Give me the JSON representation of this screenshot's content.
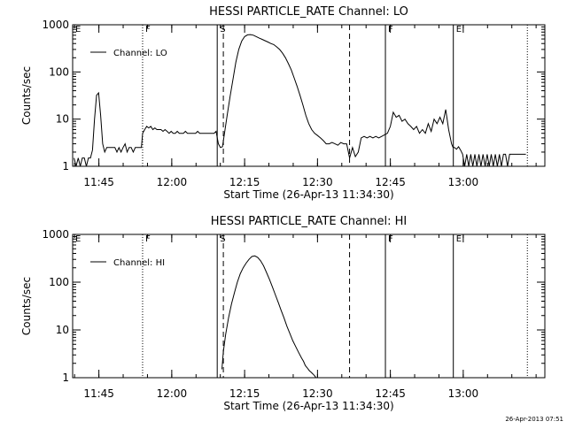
{
  "chart_data": [
    {
      "type": "line",
      "title": "HESSI PARTICLE_RATE Channel: LO",
      "xlabel": "Start Time (26-Apr-13 11:34:30)",
      "ylabel": "Counts/sec",
      "yscale": "log",
      "ylim": [
        1,
        1000
      ],
      "xlim": [
        11.66,
        13.28
      ],
      "x_ticks": [
        {
          "t": 11.75,
          "label": "11:45"
        },
        {
          "t": 12.0,
          "label": "12:00"
        },
        {
          "t": 12.25,
          "label": "12:15"
        },
        {
          "t": 12.5,
          "label": "12:30"
        },
        {
          "t": 12.75,
          "label": "12:45"
        },
        {
          "t": 13.0,
          "label": "13:00"
        }
      ],
      "y_ticks": [
        {
          "v": 1,
          "label": "1"
        },
        {
          "v": 10,
          "label": "10"
        },
        {
          "v": 100,
          "label": "100"
        },
        {
          "v": 1000,
          "label": "1000"
        }
      ],
      "legend": {
        "label": "Channel: LO",
        "position": "top-left"
      },
      "markers": [
        {
          "t": 11.66,
          "label": "E",
          "style": "dotted"
        },
        {
          "t": 11.9,
          "label": "F",
          "style": "dotted"
        },
        {
          "t": 12.156,
          "label": "S",
          "style": "solid"
        },
        {
          "t": 12.177,
          "label": "",
          "style": "dashed"
        },
        {
          "t": 12.61,
          "label": "",
          "style": "dashed"
        },
        {
          "t": 12.733,
          "label": "F",
          "style": "solid"
        },
        {
          "t": 12.966,
          "label": "E",
          "style": "solid"
        },
        {
          "t": 13.22,
          "label": "",
          "style": "dotted"
        }
      ],
      "series": [
        {
          "name": "Channel: LO",
          "points": [
            [
              11.665,
              1.5
            ],
            [
              11.672,
              1
            ],
            [
              11.679,
              1.5
            ],
            [
              11.686,
              1
            ],
            [
              11.693,
              1.5
            ],
            [
              11.7,
              1.5
            ],
            [
              11.707,
              1
            ],
            [
              11.714,
              1.5
            ],
            [
              11.721,
              1.5
            ],
            [
              11.728,
              2.2
            ],
            [
              11.735,
              10
            ],
            [
              11.742,
              32
            ],
            [
              11.749,
              36
            ],
            [
              11.756,
              12
            ],
            [
              11.763,
              3
            ],
            [
              11.77,
              2
            ],
            [
              11.777,
              2.5
            ],
            [
              11.784,
              2.5
            ],
            [
              11.791,
              2.5
            ],
            [
              11.798,
              2.5
            ],
            [
              11.805,
              2.5
            ],
            [
              11.812,
              2
            ],
            [
              11.819,
              2.5
            ],
            [
              11.826,
              2
            ],
            [
              11.833,
              2.5
            ],
            [
              11.84,
              3
            ],
            [
              11.847,
              2
            ],
            [
              11.854,
              2.5
            ],
            [
              11.861,
              2.5
            ],
            [
              11.868,
              2
            ],
            [
              11.875,
              2.5
            ],
            [
              11.882,
              2.5
            ],
            [
              11.889,
              2.5
            ],
            [
              11.896,
              2.5
            ],
            [
              11.9,
              5
            ],
            [
              11.907,
              6
            ],
            [
              11.914,
              7
            ],
            [
              11.921,
              6.5
            ],
            [
              11.928,
              7
            ],
            [
              11.935,
              6
            ],
            [
              11.942,
              6.5
            ],
            [
              11.949,
              6
            ],
            [
              11.956,
              6
            ],
            [
              11.963,
              6
            ],
            [
              11.97,
              5.5
            ],
            [
              11.977,
              6
            ],
            [
              11.984,
              5.5
            ],
            [
              11.991,
              5
            ],
            [
              11.998,
              5.5
            ],
            [
              12.005,
              5
            ],
            [
              12.012,
              5
            ],
            [
              12.019,
              5.5
            ],
            [
              12.026,
              5
            ],
            [
              12.033,
              5
            ],
            [
              12.04,
              5
            ],
            [
              12.047,
              5.5
            ],
            [
              12.054,
              5
            ],
            [
              12.061,
              5
            ],
            [
              12.068,
              5
            ],
            [
              12.075,
              5
            ],
            [
              12.082,
              5
            ],
            [
              12.089,
              5.5
            ],
            [
              12.096,
              5
            ],
            [
              12.103,
              5
            ],
            [
              12.11,
              5
            ],
            [
              12.117,
              5
            ],
            [
              12.124,
              5
            ],
            [
              12.131,
              5
            ],
            [
              12.138,
              5
            ],
            [
              12.145,
              5
            ],
            [
              12.152,
              5.5
            ],
            [
              12.16,
              3
            ],
            [
              12.167,
              2.5
            ],
            [
              12.174,
              2.6
            ],
            [
              12.181,
              5
            ],
            [
              12.19,
              12
            ],
            [
              12.2,
              30
            ],
            [
              12.21,
              70
            ],
            [
              12.22,
              160
            ],
            [
              12.23,
              300
            ],
            [
              12.24,
              450
            ],
            [
              12.25,
              560
            ],
            [
              12.26,
              610
            ],
            [
              12.27,
              620
            ],
            [
              12.28,
              600
            ],
            [
              12.29,
              560
            ],
            [
              12.3,
              520
            ],
            [
              12.31,
              490
            ],
            [
              12.32,
              460
            ],
            [
              12.33,
              430
            ],
            [
              12.34,
              400
            ],
            [
              12.35,
              380
            ],
            [
              12.36,
              340
            ],
            [
              12.37,
              300
            ],
            [
              12.38,
              250
            ],
            [
              12.39,
              200
            ],
            [
              12.4,
              150
            ],
            [
              12.41,
              110
            ],
            [
              12.42,
              75
            ],
            [
              12.43,
              50
            ],
            [
              12.44,
              32
            ],
            [
              12.45,
              20
            ],
            [
              12.46,
              12
            ],
            [
              12.47,
              8
            ],
            [
              12.48,
              6
            ],
            [
              12.49,
              5
            ],
            [
              12.5,
              4.5
            ],
            [
              12.51,
              4
            ],
            [
              12.52,
              3.5
            ],
            [
              12.53,
              3
            ],
            [
              12.54,
              3
            ],
            [
              12.55,
              3.2
            ],
            [
              12.56,
              3
            ],
            [
              12.57,
              2.8
            ],
            [
              12.58,
              3.2
            ],
            [
              12.59,
              3
            ],
            [
              12.6,
              3
            ],
            [
              12.61,
              1.5
            ],
            [
              12.62,
              2.5
            ],
            [
              12.63,
              1.6
            ],
            [
              12.64,
              2
            ],
            [
              12.65,
              4
            ],
            [
              12.66,
              4.3
            ],
            [
              12.67,
              4
            ],
            [
              12.68,
              4.3
            ],
            [
              12.69,
              4
            ],
            [
              12.7,
              4.3
            ],
            [
              12.71,
              4
            ],
            [
              12.72,
              4.3
            ],
            [
              12.74,
              5
            ],
            [
              12.75,
              7
            ],
            [
              12.76,
              14
            ],
            [
              12.77,
              11
            ],
            [
              12.78,
              12
            ],
            [
              12.79,
              9
            ],
            [
              12.8,
              10
            ],
            [
              12.81,
              8
            ],
            [
              12.82,
              7
            ],
            [
              12.83,
              6
            ],
            [
              12.84,
              7
            ],
            [
              12.85,
              5
            ],
            [
              12.86,
              6
            ],
            [
              12.87,
              5
            ],
            [
              12.88,
              8
            ],
            [
              12.89,
              5.5
            ],
            [
              12.9,
              10
            ],
            [
              12.91,
              8
            ],
            [
              12.92,
              11
            ],
            [
              12.93,
              8
            ],
            [
              12.94,
              16
            ],
            [
              12.95,
              6
            ],
            [
              12.96,
              3
            ],
            [
              12.965,
              2.5
            ],
            [
              12.97,
              2.5
            ],
            [
              12.977,
              2.3
            ],
            [
              12.984,
              2.6
            ],
            [
              12.991,
              2.2
            ],
            [
              12.998,
              1.8
            ],
            [
              13.005,
              1
            ],
            [
              13.012,
              1.8
            ],
            [
              13.019,
              1
            ],
            [
              13.026,
              1.8
            ],
            [
              13.033,
              1
            ],
            [
              13.04,
              1.8
            ],
            [
              13.047,
              1
            ],
            [
              13.054,
              1.8
            ],
            [
              13.061,
              1
            ],
            [
              13.068,
              1.8
            ],
            [
              13.075,
              1
            ],
            [
              13.082,
              1.8
            ],
            [
              13.089,
              1
            ],
            [
              13.096,
              1.8
            ],
            [
              13.103,
              1
            ],
            [
              13.11,
              1.8
            ],
            [
              13.117,
              1
            ],
            [
              13.124,
              1.8
            ],
            [
              13.131,
              1
            ],
            [
              13.138,
              1.8
            ],
            [
              13.145,
              1.8
            ],
            [
              13.152,
              1
            ],
            [
              13.159,
              1.8
            ],
            [
              13.166,
              1.8
            ],
            [
              13.173,
              1.8
            ],
            [
              13.18,
              1.8
            ],
            [
              13.187,
              1.8
            ],
            [
              13.194,
              1.8
            ],
            [
              13.201,
              1.8
            ],
            [
              13.208,
              1.8
            ],
            [
              13.215,
              1.8
            ]
          ]
        }
      ]
    },
    {
      "type": "line",
      "title": "HESSI PARTICLE_RATE Channel: HI",
      "xlabel": "Start Time (26-Apr-13 11:34:30)",
      "ylabel": "Counts/sec",
      "yscale": "log",
      "ylim": [
        1,
        1000
      ],
      "xlim": [
        11.66,
        13.28
      ],
      "x_ticks": [
        {
          "t": 11.75,
          "label": "11:45"
        },
        {
          "t": 12.0,
          "label": "12:00"
        },
        {
          "t": 12.25,
          "label": "12:15"
        },
        {
          "t": 12.5,
          "label": "12:30"
        },
        {
          "t": 12.75,
          "label": "12:45"
        },
        {
          "t": 13.0,
          "label": "13:00"
        }
      ],
      "y_ticks": [
        {
          "v": 1,
          "label": "1"
        },
        {
          "v": 10,
          "label": "10"
        },
        {
          "v": 100,
          "label": "100"
        },
        {
          "v": 1000,
          "label": "1000"
        }
      ],
      "legend": {
        "label": "Channel: HI",
        "position": "top-left"
      },
      "markers": [
        {
          "t": 11.66,
          "label": "E",
          "style": "dotted"
        },
        {
          "t": 11.9,
          "label": "F",
          "style": "dotted"
        },
        {
          "t": 12.156,
          "label": "S",
          "style": "solid"
        },
        {
          "t": 12.177,
          "label": "",
          "style": "dashed"
        },
        {
          "t": 12.61,
          "label": "",
          "style": "dashed"
        },
        {
          "t": 12.733,
          "label": "F",
          "style": "solid"
        },
        {
          "t": 12.966,
          "label": "E",
          "style": "solid"
        },
        {
          "t": 13.22,
          "label": "",
          "style": "dotted"
        }
      ],
      "series": [
        {
          "name": "Channel: HI",
          "points": [
            [
              12.172,
              1.5
            ],
            [
              12.177,
              3.5
            ],
            [
              12.185,
              8
            ],
            [
              12.195,
              18
            ],
            [
              12.205,
              35
            ],
            [
              12.215,
              60
            ],
            [
              12.225,
              100
            ],
            [
              12.235,
              150
            ],
            [
              12.245,
              200
            ],
            [
              12.255,
              250
            ],
            [
              12.265,
              300
            ],
            [
              12.275,
              345
            ],
            [
              12.285,
              355
            ],
            [
              12.295,
              330
            ],
            [
              12.305,
              280
            ],
            [
              12.315,
              220
            ],
            [
              12.325,
              160
            ],
            [
              12.335,
              115
            ],
            [
              12.345,
              80
            ],
            [
              12.355,
              55
            ],
            [
              12.365,
              38
            ],
            [
              12.375,
              26
            ],
            [
              12.385,
              18
            ],
            [
              12.395,
              12
            ],
            [
              12.405,
              8.5
            ],
            [
              12.415,
              6
            ],
            [
              12.425,
              4.5
            ],
            [
              12.435,
              3.4
            ],
            [
              12.445,
              2.6
            ],
            [
              12.452,
              2.2
            ],
            [
              12.458,
              1.8
            ],
            [
              12.465,
              1.6
            ],
            [
              12.472,
              1.4
            ],
            [
              12.478,
              1.3
            ],
            [
              12.484,
              1.2
            ],
            [
              12.49,
              1.1
            ],
            [
              12.495,
              1.0
            ]
          ]
        }
      ]
    }
  ],
  "footer": {
    "timestamp": "26-Apr-2013 07:51"
  }
}
